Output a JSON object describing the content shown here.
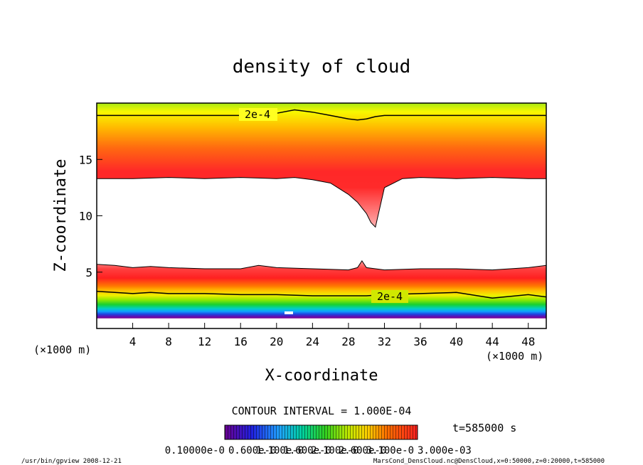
{
  "chart_data": {
    "type": "heatmap",
    "title": "density of cloud",
    "xlabel": "X-coordinate",
    "ylabel": "Z-coordinate",
    "x_unit_left": "(×1000 m)",
    "x_unit_right": "(×1000 m)",
    "xlim": [
      0,
      50
    ],
    "ylim": [
      0,
      20
    ],
    "x_ticks": [
      4,
      8,
      12,
      16,
      20,
      24,
      28,
      32,
      36,
      40,
      44,
      48
    ],
    "y_ticks": [
      5,
      10,
      15
    ],
    "contour_labels": [
      "2e-4",
      "2e-4"
    ],
    "contour_interval_text": "CONTOUR INTERVAL = 1.000E-04",
    "time_text": "t=585000 s",
    "colorbar_labels": [
      "0.10000e-0",
      "0.600e-0",
      "1.100e-0",
      "1.600e-0",
      "2.100e-0",
      "2.600e-0",
      "3.100e-0",
      "3.000e-03"
    ],
    "colorbar_min": 0.0001,
    "colorbar_max": 0.003,
    "upper_layer": {
      "x": [
        0,
        4,
        8,
        12,
        16,
        20,
        22,
        24,
        26,
        28,
        29,
        30,
        30.5,
        31,
        32,
        34,
        36,
        40,
        44,
        48,
        50
      ],
      "bottom": [
        13.3,
        13.3,
        13.4,
        13.3,
        13.4,
        13.3,
        13.4,
        13.2,
        12.9,
        11.9,
        11.2,
        10.2,
        9.4,
        9.0,
        12.5,
        13.3,
        13.4,
        13.3,
        13.4,
        13.3,
        13.3
      ],
      "contour_2e4": [
        18.9,
        18.9,
        18.9,
        18.9,
        18.9,
        19.1,
        19.4,
        19.2,
        18.9,
        18.6,
        18.5,
        18.6,
        18.7,
        18.8,
        18.9,
        18.9,
        18.9,
        18.9,
        18.9,
        18.9,
        18.9
      ]
    },
    "lower_layer": {
      "x": [
        0,
        2,
        4,
        6,
        8,
        12,
        16,
        18,
        20,
        24,
        28,
        29,
        29.5,
        30,
        32,
        36,
        40,
        44,
        48,
        50
      ],
      "top": [
        5.7,
        5.6,
        5.4,
        5.5,
        5.4,
        5.3,
        5.3,
        5.6,
        5.4,
        5.3,
        5.2,
        5.4,
        6.0,
        5.4,
        5.2,
        5.3,
        5.3,
        5.2,
        5.4,
        5.6
      ],
      "contour_2e4": [
        3.3,
        3.2,
        3.1,
        3.2,
        3.1,
        3.1,
        3.0,
        3.0,
        3.0,
        2.9,
        2.9,
        2.9,
        2.9,
        2.9,
        3.0,
        3.1,
        3.2,
        2.7,
        3.0,
        2.8
      ],
      "bottom": [
        0.9,
        0.9,
        0.9,
        0.9,
        0.9,
        0.9,
        0.9,
        0.9,
        0.9,
        0.9,
        0.9,
        0.9,
        0.9,
        0.9,
        0.9,
        0.9,
        0.9,
        0.9,
        0.9,
        0.9
      ]
    }
  },
  "footer": {
    "left": "/usr/bin/gpview   2008-12-21",
    "right": "MarsCond_DensCloud.nc@DensCloud,x=0:50000,z=0:20000,t=585000"
  }
}
